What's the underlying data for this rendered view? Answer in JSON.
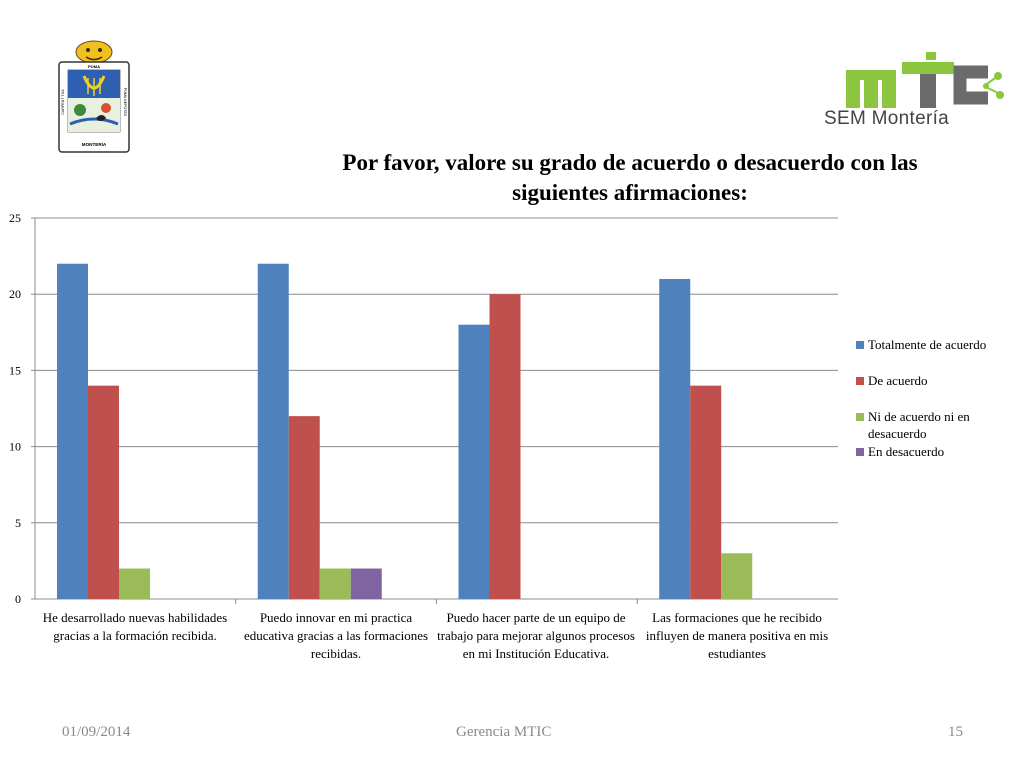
{
  "slide": {
    "left_logo": {
      "name": "monteria-coat-of-arms",
      "texts": [
        "POMA",
        "CARPENT TUA",
        "POMA NEPOTES",
        "MONTERIA"
      ]
    },
    "right_logo": {
      "name": "mtic-logo",
      "text": "SEM Montería"
    },
    "date": "01/09/2014",
    "footer_center": "Gerencia MTIC",
    "page_number": "15"
  },
  "chart_data": {
    "type": "bar",
    "title": "Por favor, valore su grado de acuerdo o desacuerdo con las siguientes afirmaciones:",
    "title_lines": [
      "Por favor, valore su grado de acuerdo o desacuerdo con las",
      "siguientes afirmaciones:"
    ],
    "categories": [
      "He desarrollado nuevas habilidades gracias a la formación recibida.",
      "Puedo innovar en mi practica educativa gracias a las formaciones recibidas.",
      "Puedo hacer parte de un equipo de trabajo para mejorar algunos procesos en mi Institución Educativa.",
      "Las formaciones que he recibido influyen de manera positiva en mis estudiantes"
    ],
    "series": [
      {
        "name": "Totalmente de acuerdo",
        "color": "#4f81bd",
        "values": [
          22,
          22,
          18,
          21
        ]
      },
      {
        "name": "De acuerdo",
        "color": "#c0504d",
        "values": [
          14,
          12,
          20,
          14
        ]
      },
      {
        "name": "Ni de acuerdo ni en desacuerdo",
        "color": "#9bbb59",
        "values": [
          2,
          2,
          0,
          3
        ]
      },
      {
        "name": "En desacuerdo",
        "color": "#8064a2",
        "values": [
          0,
          2,
          0,
          0
        ]
      }
    ],
    "ylim": [
      0,
      25
    ],
    "yticks": [
      0,
      5,
      10,
      15,
      20,
      25
    ],
    "grid": true,
    "legend": "right"
  }
}
